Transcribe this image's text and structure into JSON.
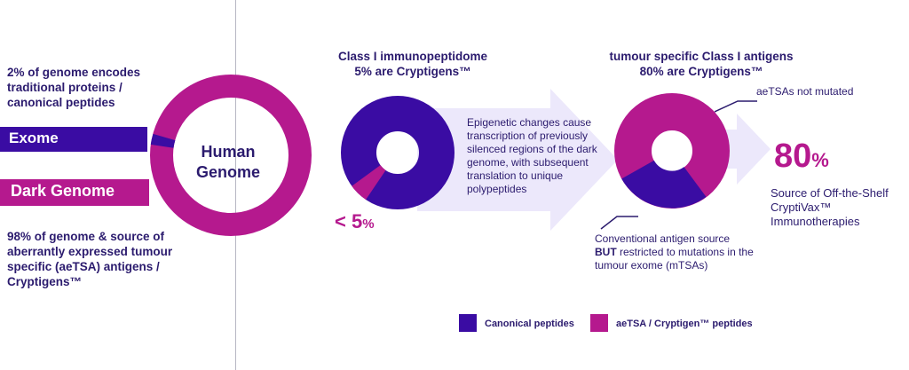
{
  "colors": {
    "canonical": "#3a0ca3",
    "aetsa": "#b5198e",
    "text_navy": "#2b1b6e",
    "arrow_fill": "#ece8fb"
  },
  "left": {
    "top_text": "2% of genome encodes traditional proteins / canonical peptides",
    "exome_label": "Exome",
    "dark_genome_label": "Dark Genome",
    "bottom_text": "98% of genome & source of aberrantly expressed tumour specific (aeTSA) antigens / Cryptigens™",
    "ring_center": "Human Genome",
    "canonical_share_pct": 2,
    "dark_share_pct": 98
  },
  "middle": {
    "heading_line1": "Class I immunopeptidome",
    "heading_line2": "5% are Cryptigens™",
    "arrow_text": "Epigenetic changes cause transcription of previously silenced regions of the dark genome, with subsequent translation to unique polypeptides",
    "donut_label_value": "< 5",
    "donut_label_pct": "%",
    "canonical_share_pct": 95,
    "cryptigen_share_pct": 5
  },
  "right": {
    "heading_line1": "tumour specific Class I antigens",
    "heading_line2": "80% are Cryptigens™",
    "not_mutated_label": "aeTSAs not mutated",
    "conventional_line1": "Conventional antigen source",
    "conventional_bold": "BUT",
    "conventional_line2": "restricted to mutations in the tumour exome (mTSAs)",
    "big_value": "80",
    "big_pct": "%",
    "source_text": "Source of Off-the-Shelf CryptiVax™ Immunotherapies",
    "canonical_share_pct": 20,
    "cryptigen_share_pct": 80
  },
  "legend": {
    "canonical_label": "Canonical peptides",
    "aetsa_label": "aeTSA / Cryptigen™ peptides"
  }
}
